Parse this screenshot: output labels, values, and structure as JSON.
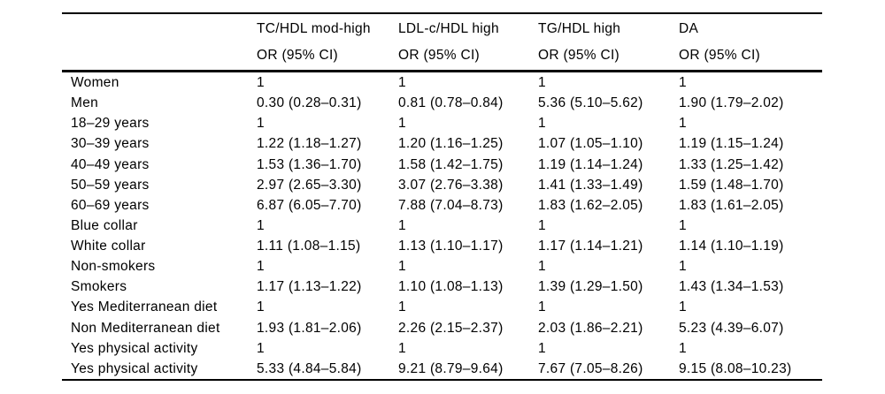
{
  "table": {
    "header": {
      "columns": [
        {
          "line1": "TC/HDL mod-high",
          "line2": "OR (95% CI)"
        },
        {
          "line1": "LDL-c/HDL high",
          "line2": "OR (95% CI)"
        },
        {
          "line1": "TG/HDL high",
          "line2": "OR (95% CI)"
        },
        {
          "line1": "DA",
          "line2": "OR (95% CI)"
        }
      ]
    },
    "rows": [
      {
        "label": "Women",
        "values": [
          "1",
          "1",
          "1",
          "1"
        ]
      },
      {
        "label": "Men",
        "values": [
          "0.30 (0.28–0.31)",
          "0.81 (0.78–0.84)",
          "5.36 (5.10–5.62)",
          "1.90 (1.79–2.02)"
        ]
      },
      {
        "label": "18–29 years",
        "values": [
          "1",
          "1",
          "1",
          "1"
        ]
      },
      {
        "label": "30–39 years",
        "values": [
          "1.22 (1.18–1.27)",
          "1.20 (1.16–1.25)",
          "1.07 (1.05–1.10)",
          "1.19 (1.15–1.24)"
        ]
      },
      {
        "label": "40–49 years",
        "values": [
          "1.53 (1.36–1.70)",
          "1.58 (1.42–1.75)",
          "1.19 (1.14–1.24)",
          "1.33 (1.25–1.42)"
        ]
      },
      {
        "label": "50–59 years",
        "values": [
          "2.97 (2.65–3.30)",
          "3.07 (2.76–3.38)",
          "1.41 (1.33–1.49)",
          "1.59 (1.48–1.70)"
        ]
      },
      {
        "label": "60–69 years",
        "values": [
          "6.87 (6.05–7.70)",
          "7.88 (7.04–8.73)",
          "1.83 (1.62–2.05)",
          "1.83 (1.61–2.05)"
        ]
      },
      {
        "label": "Blue collar",
        "values": [
          "1",
          "1",
          "1",
          "1"
        ]
      },
      {
        "label": "White collar",
        "values": [
          "1.11 (1.08–1.15)",
          "1.13 (1.10–1.17)",
          "1.17 (1.14–1.21)",
          "1.14 (1.10–1.19)"
        ]
      },
      {
        "label": "Non-smokers",
        "values": [
          "1",
          "1",
          "1",
          "1"
        ]
      },
      {
        "label": "Smokers",
        "values": [
          "1.17 (1.13–1.22)",
          "1.10 (1.08–1.13)",
          "1.39 (1.29–1.50)",
          "1.43 (1.34–1.53)"
        ]
      },
      {
        "label": "Yes Mediterranean diet",
        "values": [
          "1",
          "1",
          "1",
          "1"
        ]
      },
      {
        "label": "Non Mediterranean diet",
        "values": [
          "1.93 (1.81–2.06)",
          "2.26 (2.15–2.37)",
          "2.03 (1.86–2.21)",
          "5.23 (4.39–6.07)"
        ]
      },
      {
        "label": "Yes physical activity",
        "values": [
          "1",
          "1",
          "1",
          "1"
        ]
      },
      {
        "label": "Yes physical activity",
        "values": [
          "5.33 (4.84–5.84)",
          "9.21 (8.79–9.64)",
          "7.67 (7.05–8.26)",
          "9.15 (8.08–10.23)"
        ]
      }
    ]
  }
}
